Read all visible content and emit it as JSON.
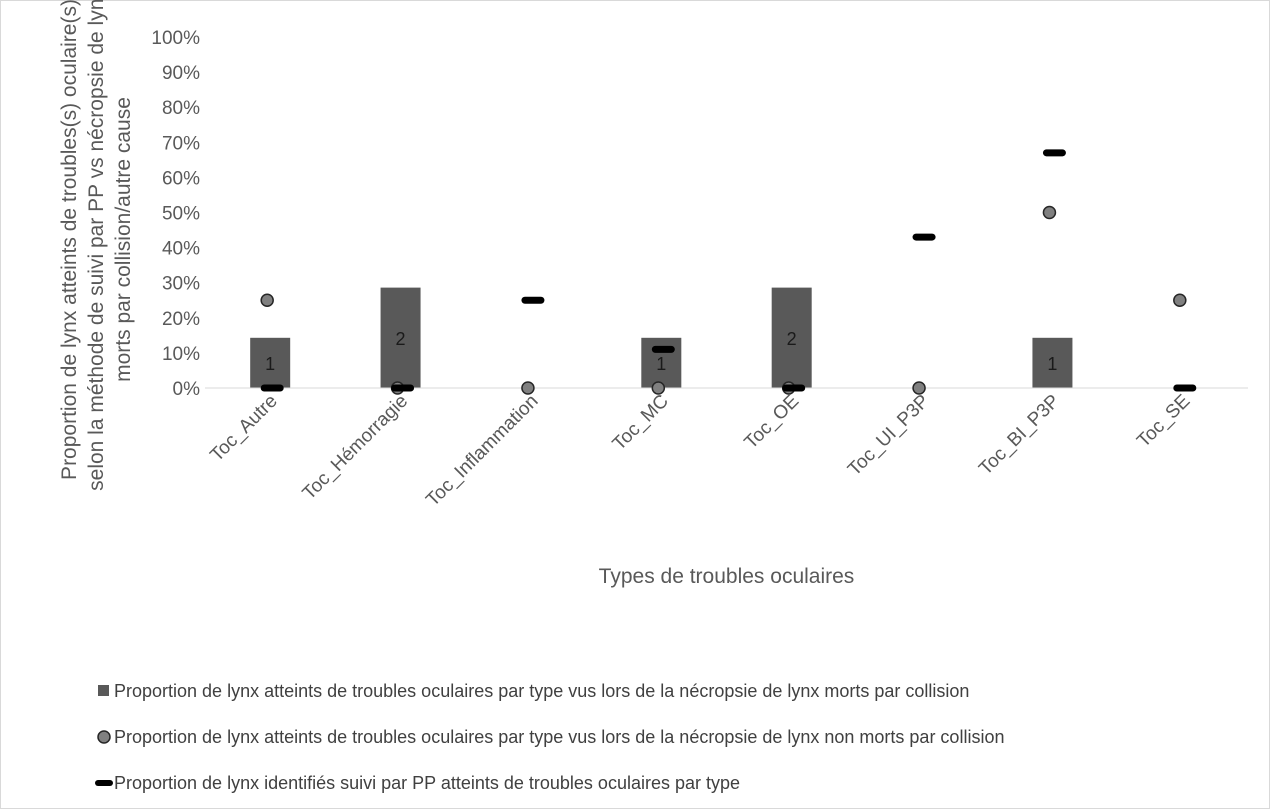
{
  "chart_data": {
    "type": "bar",
    "categories": [
      "Toc_Autre",
      "Toc_Hémorragie",
      "Toc_Inflammation",
      "Toc_MC",
      "Toc_OE",
      "Toc_UI_P3P",
      "Toc_BI_P3P",
      "Toc_SE"
    ],
    "ylim": [
      0,
      100
    ],
    "y_ticks": [
      "0%",
      "10%",
      "20%",
      "30%",
      "40%",
      "50%",
      "60%",
      "70%",
      "80%",
      "90%",
      "100%"
    ],
    "xlabel": "Types de troubles oculaires",
    "ylabel_lines": [
      "Proportion de lynx atteints de troubles(s) oculaire(s)",
      "selon la méthode de suivi par PP vs nécropsie de lynx",
      "morts par collision/autre cause"
    ],
    "legend_position": "bottom",
    "series": [
      {
        "name": "Proportion de lynx atteints de troubles oculaires par type vus lors de la nécropsie de lynx morts par collision",
        "kind": "bar",
        "color": "#595959",
        "values": [
          14.3,
          28.6,
          0,
          14.3,
          28.6,
          0,
          14.3,
          0
        ],
        "labels": [
          "1",
          "2",
          "",
          "1",
          "2",
          "",
          "1",
          ""
        ]
      },
      {
        "name": "Proportion de lynx atteints de troubles oculaires par type vus lors de la nécropsie de lynx non morts par collision",
        "kind": "circle",
        "color": "#808080",
        "values": [
          25,
          0,
          0,
          0,
          0,
          0,
          50,
          25
        ]
      },
      {
        "name": "Proportion de lynx identifiés suivi par PP atteints de troubles oculaires par type",
        "kind": "dash",
        "color": "#000000",
        "values": [
          0,
          0,
          25,
          11,
          0,
          43,
          67,
          0
        ]
      }
    ]
  }
}
